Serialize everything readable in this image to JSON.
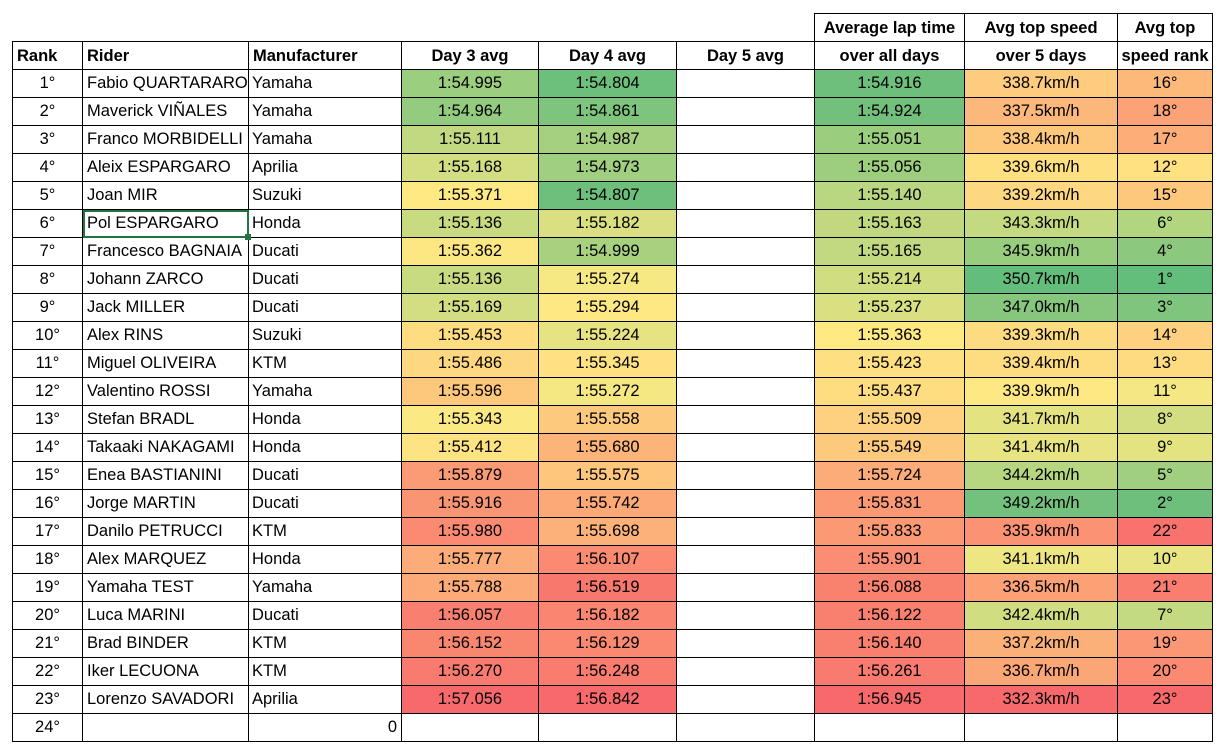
{
  "headers": {
    "rank": "Rank",
    "rider": "Rider",
    "manufacturer": "Manufacturer",
    "day3": "Day 3 avg",
    "day4": "Day 4 avg",
    "day5": "Day 5 avg",
    "avg_lap_line1": "Average lap time",
    "avg_lap_line2": "over all days",
    "top_speed_line1": "Avg top speed",
    "top_speed_line2": "over 5 days",
    "speed_rank_line1": "Avg top",
    "speed_rank_line2": "speed rank"
  },
  "rows": [
    {
      "rank": "1°",
      "rider": "Fabio QUARTARARO",
      "manu": "Yamaha",
      "d3": "1:54.995",
      "d4": "1:54.804",
      "d5": "",
      "avg": "1:54.916",
      "speed": "338.7km/h",
      "srank": "16°",
      "c3": "#9cce7f",
      "c4": "#6dbf7c",
      "cavg": "#6fbf7c",
      "cs": "#fdcc7e",
      "csr": "#fcb979"
    },
    {
      "rank": "2°",
      "rider": "Maverick VIÑALES",
      "manu": "Yamaha",
      "d3": "1:54.964",
      "d4": "1:54.861",
      "d5": "",
      "avg": "1:54.924",
      "speed": "337.5km/h",
      "srank": "18°",
      "c3": "#93cb7f",
      "c4": "#7ec47d",
      "cavg": "#72c07c",
      "cs": "#fcb87a",
      "csr": "#fba276"
    },
    {
      "rank": "3°",
      "rider": "Franco MORBIDELLI",
      "manu": "Yamaha",
      "d3": "1:55.111",
      "d4": "1:54.987",
      "d5": "",
      "avg": "1:55.051",
      "speed": "338.4km/h",
      "srank": "17°",
      "c3": "#c1d981",
      "c4": "#a4d07f",
      "cavg": "#9bcd7e",
      "cs": "#fdc77c",
      "csr": "#fcad78"
    },
    {
      "rank": "4°",
      "rider": "Aleix ESPARGARO",
      "manu": "Aprilia",
      "d3": "1:55.168",
      "d4": "1:54.973",
      "d5": "",
      "avg": "1:55.056",
      "speed": "339.6km/h",
      "srank": "12°",
      "c3": "#d3de82",
      "c4": "#a0cf7f",
      "cavg": "#9dce7e",
      "cs": "#fee081",
      "csr": "#fee282"
    },
    {
      "rank": "5°",
      "rider": "Joan MIR",
      "manu": "Suzuki",
      "d3": "1:55.371",
      "d4": "1:54.807",
      "d5": "",
      "avg": "1:55.140",
      "speed": "339.2km/h",
      "srank": "15°",
      "c3": "#fee983",
      "c4": "#6ebf7c",
      "cavg": "#b8d780",
      "cs": "#fdd880",
      "csr": "#fdc77c"
    },
    {
      "rank": "6°",
      "rider": "Pol ESPARGARO",
      "manu": "Honda",
      "d3": "1:55.136",
      "d4": "1:55.182",
      "d5": "",
      "avg": "1:55.163",
      "speed": "343.3km/h",
      "srank": "6°",
      "c3": "#c9db81",
      "c4": "#dae082",
      "cavg": "#c0d980",
      "cs": "#c4da81",
      "csr": "#b2d580"
    },
    {
      "rank": "7°",
      "rider": "Francesco BAGNAIA",
      "manu": "Ducati",
      "d3": "1:55.362",
      "d4": "1:54.999",
      "d5": "",
      "avg": "1:55.165",
      "speed": "345.9km/h",
      "srank": "4°",
      "c3": "#fde783",
      "c4": "#a7d17f",
      "cavg": "#c1d981",
      "cs": "#99cd7e",
      "csr": "#8cc97e"
    },
    {
      "rank": "8°",
      "rider": "Johann ZARCO",
      "manu": "Ducati",
      "d3": "1:55.136",
      "d4": "1:55.274",
      "d5": "",
      "avg": "1:55.214",
      "speed": "350.7km/h",
      "srank": "1°",
      "c3": "#c9db81",
      "c4": "#f6e883",
      "cavg": "#d1dd81",
      "cs": "#63be7b",
      "csr": "#63be7b"
    },
    {
      "rank": "9°",
      "rider": "Jack MILLER",
      "manu": "Ducati",
      "d3": "1:55.169",
      "d4": "1:55.294",
      "d5": "",
      "avg": "1:55.237",
      "speed": "347.0km/h",
      "srank": "3°",
      "c3": "#d3de82",
      "c4": "#fee883",
      "cavg": "#d9e082",
      "cs": "#86c77d",
      "csr": "#7fc57d"
    },
    {
      "rank": "10°",
      "rider": "Alex RINS",
      "manu": "Suzuki",
      "d3": "1:55.453",
      "d4": "1:55.224",
      "d5": "",
      "avg": "1:55.363",
      "speed": "339.3km/h",
      "srank": "14°",
      "c3": "#fedd81",
      "c4": "#e6e482",
      "cavg": "#fee983",
      "cs": "#fddc81",
      "csr": "#fdd17f"
    },
    {
      "rank": "11°",
      "rider": "Miguel OLIVEIRA",
      "manu": "KTM",
      "d3": "1:55.486",
      "d4": "1:55.345",
      "d5": "",
      "avg": "1:55.423",
      "speed": "339.4km/h",
      "srank": "13°",
      "c3": "#fed880",
      "c4": "#fee182",
      "cavg": "#fedf81",
      "cs": "#fedd81",
      "csr": "#fedb80"
    },
    {
      "rank": "12°",
      "rider": "Valentino ROSSI",
      "manu": "Yamaha",
      "d3": "1:55.596",
      "d4": "1:55.272",
      "d5": "",
      "avg": "1:55.437",
      "speed": "339.9km/h",
      "srank": "11°",
      "c3": "#fdc77c",
      "c4": "#f5e883",
      "cavg": "#fedd81",
      "cs": "#fee883",
      "csr": "#f5e783"
    },
    {
      "rank": "13°",
      "rider": "Stefan BRADL",
      "manu": "Honda",
      "d3": "1:55.343",
      "d4": "1:55.558",
      "d5": "",
      "avg": "1:55.509",
      "speed": "341.7km/h",
      "srank": "8°",
      "c3": "#fbe983",
      "c4": "#fdc97d",
      "cavg": "#fdd17f",
      "cs": "#e3e382",
      "csr": "#d3de82"
    },
    {
      "rank": "14°",
      "rider": "Takaaki NAKAGAMI",
      "manu": "Honda",
      "d3": "1:55.412",
      "d4": "1:55.680",
      "d5": "",
      "avg": "1:55.549",
      "speed": "341.4km/h",
      "srank": "9°",
      "c3": "#fee382",
      "c4": "#fcb479",
      "cavg": "#fdca7d",
      "cs": "#e8e482",
      "csr": "#e3e382"
    },
    {
      "rank": "15°",
      "rider": "Enea BASTIANINI",
      "manu": "Ducati",
      "d3": "1:55.879",
      "d4": "1:55.575",
      "d5": "",
      "avg": "1:55.724",
      "speed": "344.2km/h",
      "srank": "5°",
      "c3": "#fa9b75",
      "c4": "#fdc67c",
      "cavg": "#fcac78",
      "cs": "#b6d680",
      "csr": "#a0cf7f"
    },
    {
      "rank": "16°",
      "rider": "Jorge MARTIN",
      "manu": "Ducati",
      "d3": "1:55.916",
      "d4": "1:55.742",
      "d5": "",
      "avg": "1:55.831",
      "speed": "349.2km/h",
      "srank": "2°",
      "c3": "#fa9574",
      "c4": "#fca977",
      "cavg": "#fb9975",
      "cs": "#73c17c",
      "csr": "#6fbf7c"
    },
    {
      "rank": "17°",
      "rider": "Danilo PETRUCCI",
      "manu": "KTM",
      "d3": "1:55.980",
      "d4": "1:55.698",
      "d5": "",
      "avg": "1:55.833",
      "speed": "335.9km/h",
      "srank": "22°",
      "c3": "#fa8b72",
      "c4": "#fcb178",
      "cavg": "#fb9975",
      "cs": "#fa9273",
      "csr": "#f8736d"
    },
    {
      "rank": "18°",
      "rider": "Alex MARQUEZ",
      "manu": "Honda",
      "d3": "1:55.777",
      "d4": "1:56.107",
      "d5": "",
      "avg": "1:55.901",
      "speed": "341.1km/h",
      "srank": "10°",
      "c3": "#fcac78",
      "c4": "#fa8b72",
      "cavg": "#fa8d73",
      "cs": "#eee583",
      "csr": "#eae583"
    },
    {
      "rank": "19°",
      "rider": "Yamaha TEST",
      "manu": "Yamaha",
      "d3": "1:55.788",
      "d4": "1:56.519",
      "d5": "",
      "avg": "1:56.088",
      "speed": "336.5km/h",
      "srank": "21°",
      "c3": "#fcaa77",
      "c4": "#f8786e",
      "cavg": "#f9826f",
      "cs": "#fba175",
      "csr": "#f97e6f"
    },
    {
      "rank": "20°",
      "rider": "Luca MARINI",
      "manu": "Ducati",
      "d3": "1:56.057",
      "d4": "1:56.182",
      "d5": "",
      "avg": "1:56.122",
      "speed": "342.4km/h",
      "srank": "7°",
      "c3": "#f97f70",
      "c4": "#fa8671",
      "cavg": "#f97f6f",
      "cs": "#d1dd81",
      "csr": "#c4da81"
    },
    {
      "rank": "21°",
      "rider": "Brad BINDER",
      "manu": "KTM",
      "d3": "1:56.152",
      "d4": "1:56.129",
      "d5": "",
      "avg": "1:56.140",
      "speed": "337.2km/h",
      "srank": "19°",
      "c3": "#f9866f",
      "c4": "#fa8972",
      "cavg": "#f97f6f",
      "cs": "#fbb078",
      "csr": "#fb9775"
    },
    {
      "rank": "22°",
      "rider": "Iker LECUONA",
      "manu": "KTM",
      "d3": "1:56.270",
      "d4": "1:56.248",
      "d5": "",
      "avg": "1:56.261",
      "speed": "336.7km/h",
      "srank": "20°",
      "c3": "#f97b6f",
      "c4": "#f97c6f",
      "cavg": "#f97a6e",
      "cs": "#fba676",
      "csr": "#fa8b72"
    },
    {
      "rank": "23°",
      "rider": "Lorenzo SAVADORI",
      "manu": "Aprilia",
      "d3": "1:57.056",
      "d4": "1:56.842",
      "d5": "",
      "avg": "1:56.945",
      "speed": "332.3km/h",
      "srank": "23°",
      "c3": "#f8696b",
      "c4": "#f8696b",
      "cavg": "#f8696b",
      "cs": "#f8696b",
      "csr": "#f8696b"
    }
  ],
  "last_row": {
    "rank": "24°",
    "manu_value": "0"
  },
  "selection": {
    "color": "#21733f"
  }
}
